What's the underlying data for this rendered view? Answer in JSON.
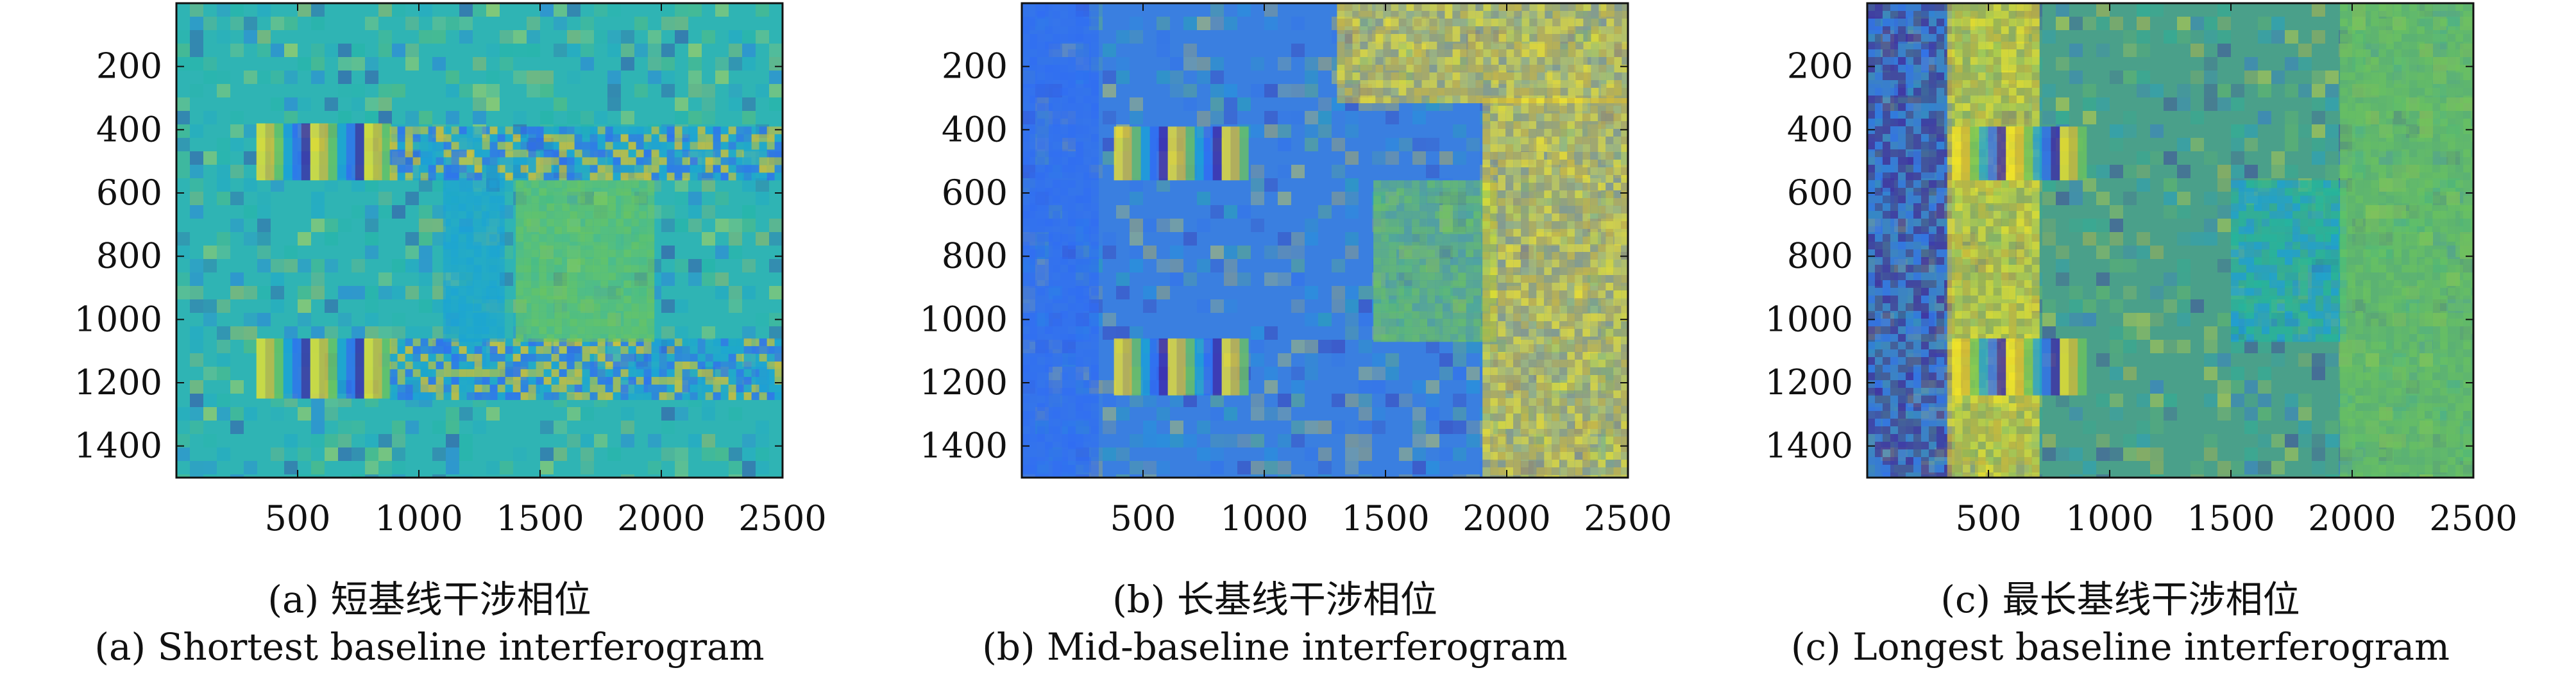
{
  "chart_data": [
    {
      "type": "heatmap",
      "caption_cn": "(a) 短基线干涉相位",
      "caption_en": "(a) Shortest baseline interferogram",
      "xlim": [
        0,
        2500
      ],
      "ylim": [
        1500,
        0
      ],
      "x_ticks": [
        500,
        1000,
        1500,
        2000,
        2500
      ],
      "y_ticks": [
        200,
        400,
        600,
        800,
        1000,
        1200,
        1400
      ],
      "colormap": [
        "#3e26a8",
        "#2f6bf5",
        "#19a2d8",
        "#1fb8a0",
        "#6fc65a",
        "#d9be32",
        "#f9e624"
      ],
      "base_color": "#2fb4b4",
      "features": [
        {
          "kind": "rect",
          "x": [
            330,
            880
          ],
          "y": [
            380,
            560
          ],
          "style": "fringe"
        },
        {
          "kind": "rect",
          "x": [
            330,
            880
          ],
          "y": [
            1060,
            1250
          ],
          "style": "fringe"
        },
        {
          "kind": "rect",
          "x": [
            880,
            2500
          ],
          "y": [
            390,
            560
          ],
          "style": "stripe"
        },
        {
          "kind": "rect",
          "x": [
            880,
            2500
          ],
          "y": [
            1060,
            1240
          ],
          "style": "stripe"
        },
        {
          "kind": "rect",
          "x": [
            1100,
            1350
          ],
          "y": [
            560,
            1060
          ],
          "style": "cool"
        },
        {
          "kind": "rect",
          "x": [
            1400,
            1950
          ],
          "y": [
            560,
            1060
          ],
          "style": "green"
        }
      ]
    },
    {
      "type": "heatmap",
      "caption_cn": "(b) 长基线干涉相位",
      "caption_en": "(b) Mid-baseline interferogram",
      "xlim": [
        0,
        2500
      ],
      "ylim": [
        1500,
        0
      ],
      "x_ticks": [
        500,
        1000,
        1500,
        2000,
        2500
      ],
      "y_ticks": [
        200,
        400,
        600,
        800,
        1000,
        1200,
        1400
      ],
      "colormap": [
        "#3e26a8",
        "#2f6bf5",
        "#19a2d8",
        "#1fb8a0",
        "#6fc65a",
        "#d9be32",
        "#f9e624"
      ],
      "base_color": "#3a7fe0",
      "features": [
        {
          "kind": "rect",
          "x": [
            0,
            300
          ],
          "y": [
            0,
            1500
          ],
          "style": "blue"
        },
        {
          "kind": "rect",
          "x": [
            1300,
            2500
          ],
          "y": [
            0,
            300
          ],
          "style": "yellow"
        },
        {
          "kind": "rect",
          "x": [
            380,
            900
          ],
          "y": [
            390,
            560
          ],
          "style": "fringe"
        },
        {
          "kind": "rect",
          "x": [
            380,
            900
          ],
          "y": [
            1060,
            1240
          ],
          "style": "fringe"
        },
        {
          "kind": "rect",
          "x": [
            1450,
            1950
          ],
          "y": [
            560,
            1060
          ],
          "style": "green"
        },
        {
          "kind": "rect",
          "x": [
            1900,
            2500
          ],
          "y": [
            300,
            1500
          ],
          "style": "yellow"
        }
      ]
    },
    {
      "type": "heatmap",
      "caption_cn": "(c) 最长基线干涉相位",
      "caption_en": "(c) Longest baseline interferogram",
      "xlim": [
        0,
        2500
      ],
      "ylim": [
        1500,
        0
      ],
      "x_ticks": [
        500,
        1000,
        1500,
        2000,
        2500
      ],
      "y_ticks": [
        200,
        400,
        600,
        800,
        1000,
        1200,
        1400
      ],
      "colormap": [
        "#3e26a8",
        "#2f6bf5",
        "#19a2d8",
        "#1fb8a0",
        "#6fc65a",
        "#d9be32",
        "#f9e624"
      ],
      "base_color": "#4aa08a",
      "features": [
        {
          "kind": "rect",
          "x": [
            0,
            330
          ],
          "y": [
            0,
            1500
          ],
          "style": "purple"
        },
        {
          "kind": "rect",
          "x": [
            330,
            700
          ],
          "y": [
            0,
            1500
          ],
          "style": "yellow"
        },
        {
          "kind": "rect",
          "x": [
            350,
            900
          ],
          "y": [
            390,
            560
          ],
          "style": "fringe"
        },
        {
          "kind": "rect",
          "x": [
            350,
            900
          ],
          "y": [
            1060,
            1240
          ],
          "style": "fringe"
        },
        {
          "kind": "rect",
          "x": [
            1500,
            1950
          ],
          "y": [
            560,
            1060
          ],
          "style": "cyan"
        },
        {
          "kind": "rect",
          "x": [
            1950,
            2500
          ],
          "y": [
            0,
            1500
          ],
          "style": "green"
        }
      ]
    }
  ]
}
